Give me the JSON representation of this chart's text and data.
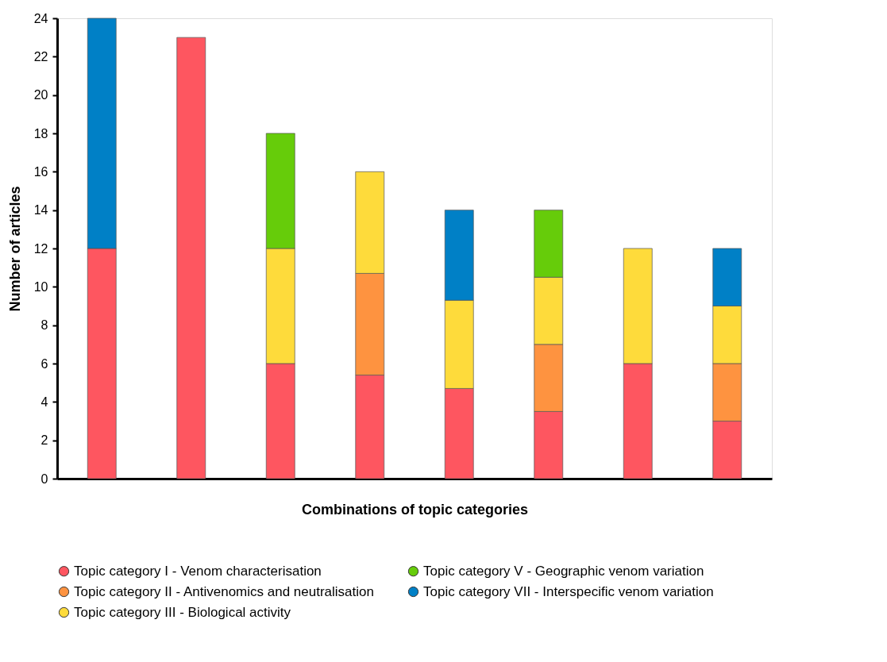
{
  "chart_data": {
    "type": "bar",
    "stacked": true,
    "xlabel": "Combinations of topic categories",
    "ylabel": "Number of articles",
    "categories": [
      null,
      null,
      null,
      null,
      null,
      null,
      null,
      null
    ],
    "ylim": [
      0,
      24
    ],
    "yticks": [
      0,
      2,
      4,
      6,
      8,
      10,
      12,
      14,
      16,
      18,
      20,
      22,
      24
    ],
    "grid": false,
    "legend": "bottom",
    "series": [
      {
        "name": "Topic category I - Venom characterisation",
        "color": "#fe5660",
        "values": [
          12,
          23,
          6,
          5.4,
          4.7,
          3.5,
          6,
          3
        ]
      },
      {
        "name": "Topic category II - Antivenomics and neutralisation",
        "color": "#fe9340",
        "values": [
          null,
          null,
          null,
          5.3,
          null,
          3.5,
          null,
          3
        ]
      },
      {
        "name": "Topic category III - Biological activity",
        "color": "#fedb3b",
        "values": [
          null,
          null,
          6,
          5.3,
          4.6,
          3.5,
          6,
          3
        ]
      },
      {
        "name": "Topic category V - Geographic venom variation",
        "color": "#66cc0a",
        "values": [
          null,
          null,
          6,
          null,
          null,
          3.5,
          null,
          null
        ]
      },
      {
        "name": "Topic category VII - Interspecific venom variation",
        "color": "#0080c6",
        "values": [
          12,
          null,
          null,
          null,
          4.7,
          null,
          null,
          3
        ]
      }
    ]
  }
}
